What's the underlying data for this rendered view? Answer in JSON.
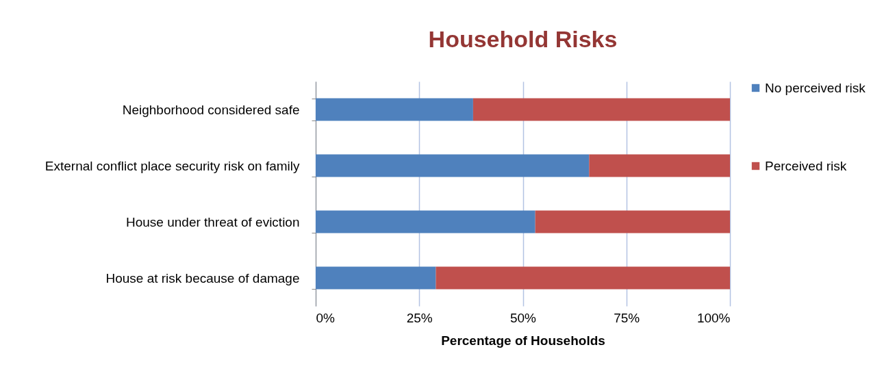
{
  "chart_data": {
    "type": "bar",
    "orientation": "horizontal",
    "stacked": true,
    "title": "Household Risks",
    "xlabel": "Percentage of Households",
    "categories": [
      "Neighborhood considered safe",
      "External conflict place security risk on family",
      "House under threat of eviction",
      "House at risk because of damage"
    ],
    "series": [
      {
        "name": "No perceived risk",
        "color": "#4f81bd",
        "values": [
          38,
          66,
          53,
          29
        ]
      },
      {
        "name": "Perceived risk",
        "color": "#c0504d",
        "values": [
          62,
          34,
          47,
          71
        ]
      }
    ],
    "xlim": [
      0,
      100
    ],
    "xticks": [
      {
        "value": 0,
        "label": "0%"
      },
      {
        "value": 25,
        "label": "25%"
      },
      {
        "value": 50,
        "label": "50%"
      },
      {
        "value": 75,
        "label": "75%"
      },
      {
        "value": 100,
        "label": "100%"
      }
    ],
    "grid": "x",
    "legend": "right"
  }
}
